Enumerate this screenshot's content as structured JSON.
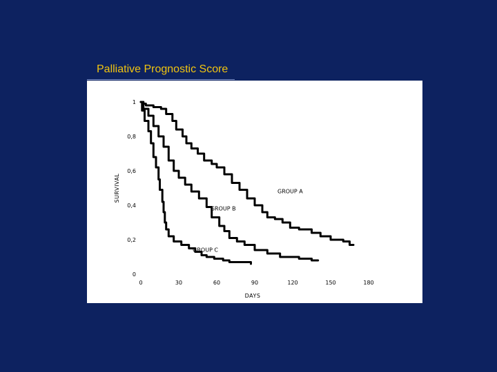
{
  "slide": {
    "title": "Palliative Prognostic Score",
    "background_color": "#0d2260",
    "title_color": "#f1c40f"
  },
  "chart_data": {
    "type": "line",
    "title": "",
    "xlabel": "DAYS",
    "ylabel": "SURVIVAL",
    "xlim": [
      0,
      180
    ],
    "ylim": [
      0,
      1
    ],
    "x_ticks": [
      0,
      30,
      60,
      90,
      120,
      150,
      180
    ],
    "x_tick_labels": [
      "0",
      "30",
      "60",
      "90",
      "120",
      "150",
      "180"
    ],
    "y_ticks": [
      0,
      0.2,
      0.4,
      0.6,
      0.8,
      1
    ],
    "y_tick_labels": [
      "0",
      "0,2",
      "0,4",
      "0,6",
      "0,8",
      "1"
    ],
    "grid": false,
    "series": [
      {
        "name": "GROUP A",
        "points": [
          [
            0,
            1
          ],
          [
            2,
            0.99
          ],
          [
            4,
            0.98
          ],
          [
            10,
            0.97
          ],
          [
            16,
            0.96
          ],
          [
            20,
            0.93
          ],
          [
            25,
            0.89
          ],
          [
            28,
            0.84
          ],
          [
            33,
            0.8
          ],
          [
            36,
            0.76
          ],
          [
            40,
            0.73
          ],
          [
            45,
            0.7
          ],
          [
            50,
            0.66
          ],
          [
            56,
            0.64
          ],
          [
            60,
            0.62
          ],
          [
            66,
            0.58
          ],
          [
            72,
            0.53
          ],
          [
            78,
            0.49
          ],
          [
            84,
            0.44
          ],
          [
            90,
            0.4
          ],
          [
            96,
            0.36
          ],
          [
            100,
            0.33
          ],
          [
            106,
            0.32
          ],
          [
            112,
            0.3
          ],
          [
            118,
            0.27
          ],
          [
            125,
            0.26
          ],
          [
            135,
            0.24
          ],
          [
            142,
            0.22
          ],
          [
            150,
            0.2
          ],
          [
            160,
            0.19
          ],
          [
            165,
            0.17
          ],
          [
            168,
            0.17
          ]
        ]
      },
      {
        "name": "GROUP B",
        "points": [
          [
            0,
            1
          ],
          [
            2,
            0.96
          ],
          [
            6,
            0.92
          ],
          [
            10,
            0.86
          ],
          [
            14,
            0.8
          ],
          [
            18,
            0.74
          ],
          [
            22,
            0.66
          ],
          [
            26,
            0.6
          ],
          [
            30,
            0.56
          ],
          [
            35,
            0.52
          ],
          [
            40,
            0.48
          ],
          [
            46,
            0.44
          ],
          [
            52,
            0.39
          ],
          [
            56,
            0.33
          ],
          [
            62,
            0.28
          ],
          [
            66,
            0.25
          ],
          [
            70,
            0.21
          ],
          [
            76,
            0.19
          ],
          [
            82,
            0.17
          ],
          [
            90,
            0.14
          ],
          [
            100,
            0.12
          ],
          [
            110,
            0.1
          ],
          [
            125,
            0.09
          ],
          [
            135,
            0.08
          ],
          [
            140,
            0.08
          ]
        ]
      },
      {
        "name": "GROUP C",
        "points": [
          [
            0,
            1
          ],
          [
            1,
            0.95
          ],
          [
            3,
            0.89
          ],
          [
            6,
            0.83
          ],
          [
            8,
            0.76
          ],
          [
            10,
            0.68
          ],
          [
            12,
            0.62
          ],
          [
            14,
            0.55
          ],
          [
            15,
            0.49
          ],
          [
            17,
            0.42
          ],
          [
            18,
            0.36
          ],
          [
            19,
            0.3
          ],
          [
            20,
            0.26
          ],
          [
            22,
            0.22
          ],
          [
            26,
            0.19
          ],
          [
            32,
            0.17
          ],
          [
            38,
            0.15
          ],
          [
            43,
            0.13
          ],
          [
            48,
            0.11
          ],
          [
            52,
            0.1
          ],
          [
            58,
            0.09
          ],
          [
            65,
            0.08
          ],
          [
            70,
            0.07
          ],
          [
            80,
            0.07
          ],
          [
            87,
            0.06
          ]
        ]
      }
    ],
    "annotations": [
      {
        "text": "GROUP A",
        "x": 108,
        "y": 0.47
      },
      {
        "text": "GROUP B",
        "x": 55,
        "y": 0.37
      },
      {
        "text": "GROUP C",
        "x": 41,
        "y": 0.13
      }
    ]
  }
}
